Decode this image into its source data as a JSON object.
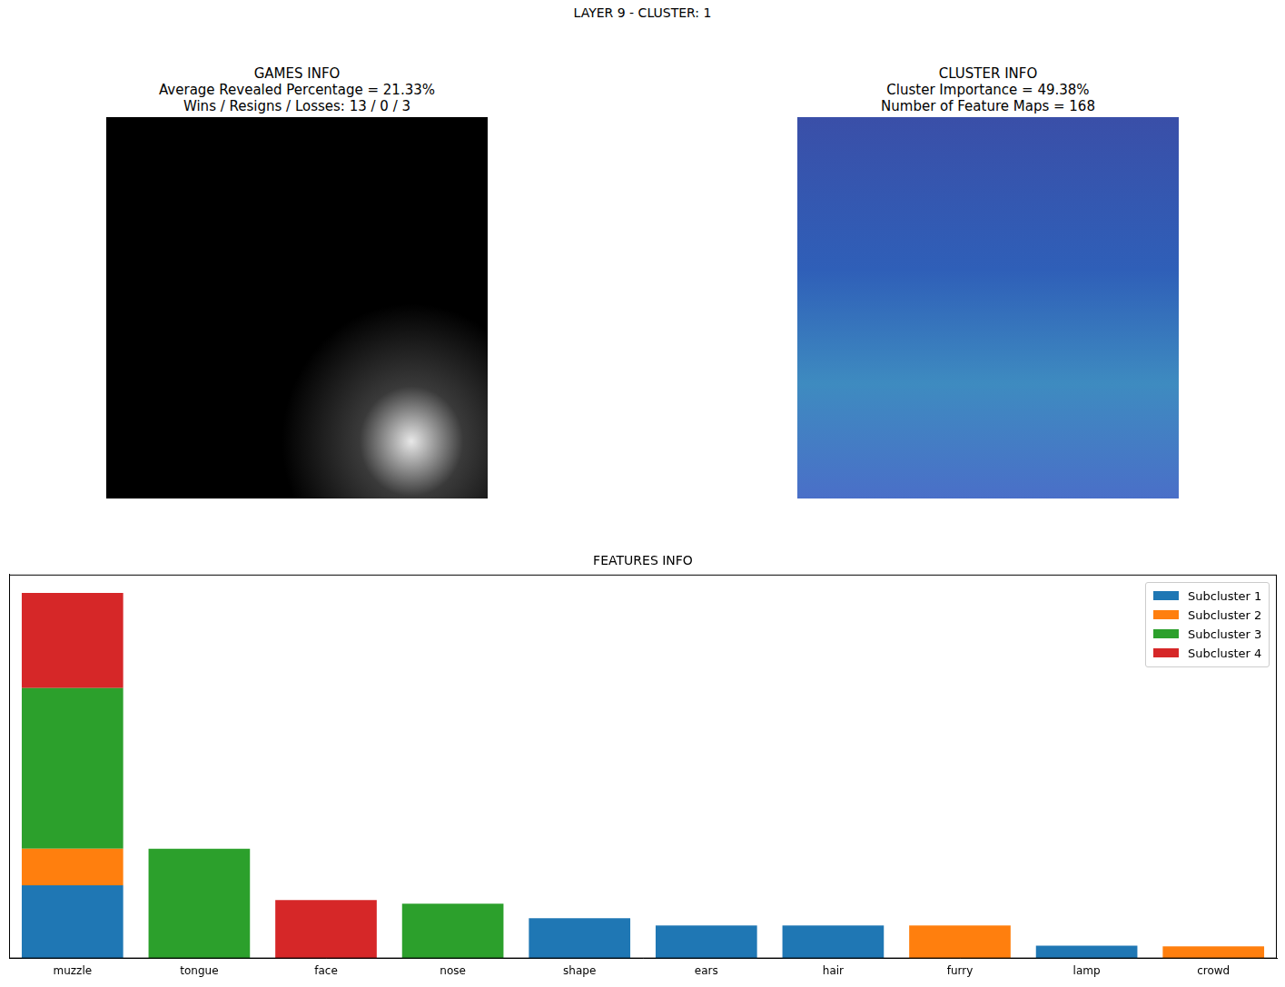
{
  "figure_title": "LAYER 9 - CLUSTER: 1",
  "panels": [
    {
      "title_lines": [
        "GAMES INFO",
        "Average Revealed Percentage = 21.33%",
        "Wins / Resigns / Losses: 13 / 0 / 3"
      ]
    },
    {
      "title_lines": [
        "CLUSTER INFO",
        "Cluster Importance = 49.38%",
        "Number of Feature Maps = 168"
      ]
    }
  ],
  "chart_data": {
    "type": "bar",
    "title": "FEATURES INFO",
    "stacked": true,
    "legend": "upper right",
    "grid": false,
    "tick_labels": "x",
    "categories": [
      "muzzle",
      "tongue",
      "face",
      "nose",
      "shape",
      "ears",
      "hair",
      "furry",
      "lamp",
      "crowd"
    ],
    "ylim": [
      0,
      1.05
    ],
    "series": [
      {
        "name": "Subcluster 1",
        "color": "#1f77b4",
        "values": [
          0.2,
          null,
          null,
          null,
          0.11,
          0.09,
          0.09,
          null,
          0.035,
          null
        ]
      },
      {
        "name": "Subcluster 2",
        "color": "#ff7f0e",
        "values": [
          0.1,
          null,
          null,
          null,
          null,
          null,
          null,
          0.09,
          null,
          0.033
        ]
      },
      {
        "name": "Subcluster 3",
        "color": "#2ca02c",
        "values": [
          0.44,
          0.3,
          null,
          0.15,
          null,
          null,
          null,
          null,
          null,
          null
        ]
      },
      {
        "name": "Subcluster 4",
        "color": "#d62728",
        "values": [
          0.26,
          null,
          0.16,
          null,
          null,
          null,
          null,
          null,
          null,
          null
        ]
      }
    ]
  }
}
